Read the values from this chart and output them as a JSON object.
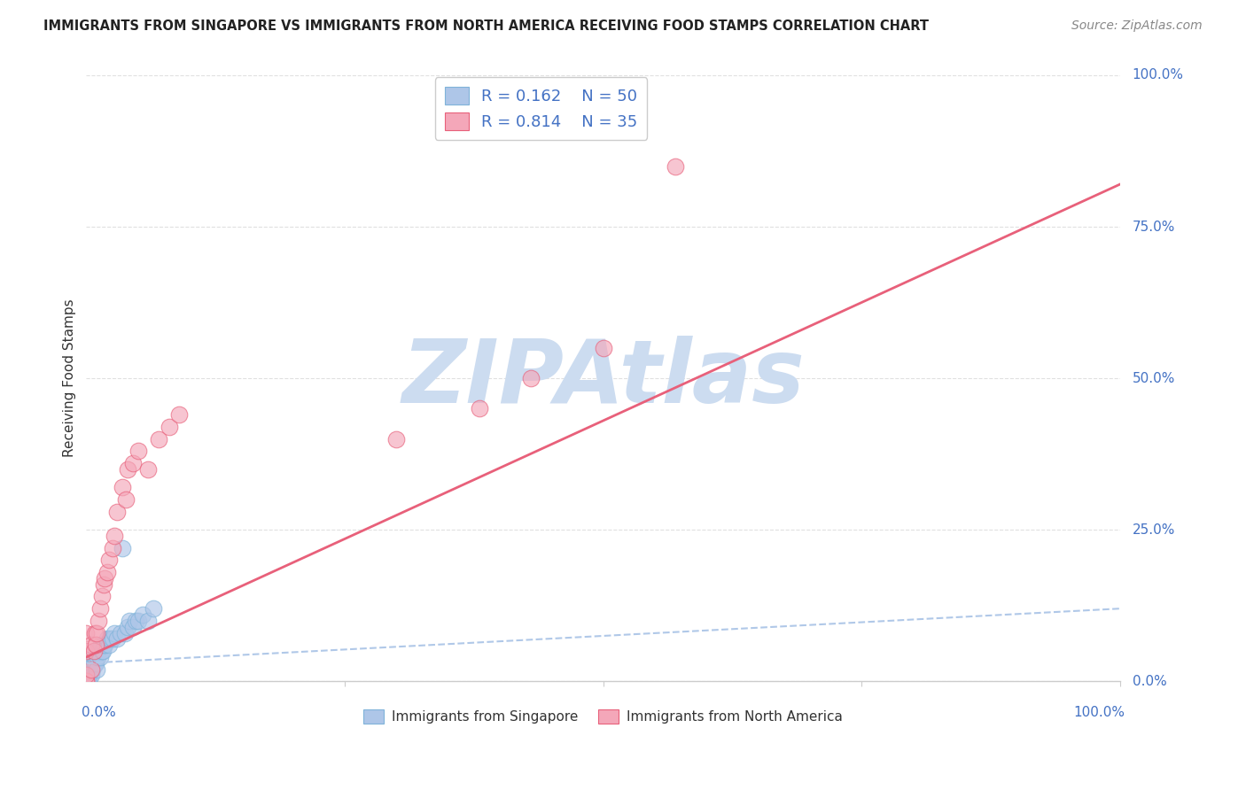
{
  "title": "IMMIGRANTS FROM SINGAPORE VS IMMIGRANTS FROM NORTH AMERICA RECEIVING FOOD STAMPS CORRELATION CHART",
  "source": "Source: ZipAtlas.com",
  "ylabel": "Receiving Food Stamps",
  "ytick_labels": [
    "0.0%",
    "25.0%",
    "50.0%",
    "75.0%",
    "100.0%"
  ],
  "ytick_values": [
    0.0,
    0.25,
    0.5,
    0.75,
    1.0
  ],
  "xtick_labels": [
    "0.0%",
    "100.0%"
  ],
  "xlim": [
    0.0,
    1.0
  ],
  "ylim": [
    0.0,
    1.0
  ],
  "singapore_color": "#aec6e8",
  "singapore_edge_color": "#7fb3d9",
  "north_america_color": "#f4a7b9",
  "north_america_edge_color": "#e8607a",
  "regression_singapore_color": "#b0c8e8",
  "regression_north_america_color": "#e8607a",
  "watermark_text": "ZIPAtlas",
  "watermark_color": "#ccdcf0",
  "background_color": "#ffffff",
  "grid_color": "#e0e0e0",
  "label_color": "#4472c4",
  "title_color": "#222222",
  "source_color": "#888888",
  "legend_r_sg": "R = 0.162",
  "legend_n_sg": "N = 50",
  "legend_r_na": "R = 0.814",
  "legend_n_na": "N = 35",
  "sg_x": [
    0.0,
    0.0,
    0.0,
    0.0,
    0.0,
    0.0,
    0.0,
    0.0,
    0.0,
    0.0,
    0.002,
    0.002,
    0.003,
    0.003,
    0.004,
    0.004,
    0.005,
    0.005,
    0.006,
    0.007,
    0.008,
    0.008,
    0.009,
    0.01,
    0.01,
    0.011,
    0.012,
    0.013,
    0.014,
    0.015,
    0.016,
    0.017,
    0.018,
    0.02,
    0.022,
    0.023,
    0.025,
    0.027,
    0.03,
    0.033,
    0.035,
    0.037,
    0.04,
    0.042,
    0.045,
    0.048,
    0.05,
    0.055,
    0.06,
    0.065
  ],
  "sg_y": [
    0.0,
    0.0,
    0.0,
    0.0,
    0.01,
    0.01,
    0.02,
    0.02,
    0.03,
    0.04,
    0.0,
    0.01,
    0.01,
    0.02,
    0.02,
    0.03,
    0.01,
    0.03,
    0.02,
    0.03,
    0.03,
    0.04,
    0.03,
    0.02,
    0.05,
    0.04,
    0.05,
    0.04,
    0.06,
    0.05,
    0.05,
    0.06,
    0.06,
    0.07,
    0.06,
    0.07,
    0.07,
    0.08,
    0.07,
    0.08,
    0.22,
    0.08,
    0.09,
    0.1,
    0.09,
    0.1,
    0.1,
    0.11,
    0.1,
    0.12
  ],
  "na_x": [
    0.0,
    0.0,
    0.0,
    0.0,
    0.0,
    0.005,
    0.005,
    0.007,
    0.008,
    0.009,
    0.01,
    0.012,
    0.013,
    0.015,
    0.017,
    0.018,
    0.02,
    0.022,
    0.025,
    0.027,
    0.03,
    0.035,
    0.038,
    0.04,
    0.045,
    0.05,
    0.06,
    0.07,
    0.08,
    0.09,
    0.3,
    0.38,
    0.43,
    0.5,
    0.57
  ],
  "na_y": [
    0.0,
    0.0,
    0.01,
    0.05,
    0.08,
    0.02,
    0.06,
    0.05,
    0.08,
    0.06,
    0.08,
    0.1,
    0.12,
    0.14,
    0.16,
    0.17,
    0.18,
    0.2,
    0.22,
    0.24,
    0.28,
    0.32,
    0.3,
    0.35,
    0.36,
    0.38,
    0.35,
    0.4,
    0.42,
    0.44,
    0.4,
    0.45,
    0.5,
    0.55,
    0.85
  ],
  "sg_line_x": [
    0.0,
    1.0
  ],
  "sg_line_y": [
    0.03,
    0.12
  ],
  "na_line_x": [
    0.0,
    1.0
  ],
  "na_line_y": [
    0.04,
    0.82
  ]
}
